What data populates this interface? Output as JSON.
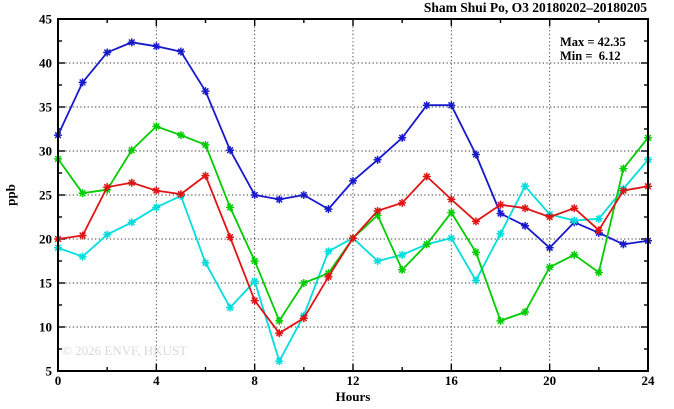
{
  "window": {
    "title": "Sham Shui Po, O3 20180202–20180205"
  },
  "stats": {
    "max_label": "Max = 42.35",
    "min_label": "Min =  6.12"
  },
  "watermark": "© 2026 ENVF, HKUST",
  "chart_data": {
    "type": "line",
    "title": "Sham Shui Po, O3 20180202–20180205",
    "xlabel": "Hours",
    "ylabel": "ppb",
    "xlim": [
      0,
      24
    ],
    "ylim": [
      5,
      45
    ],
    "x_major_ticks": [
      0,
      4,
      8,
      12,
      16,
      20,
      24
    ],
    "x_minor_ticks": [
      2,
      6,
      10,
      14,
      18,
      22
    ],
    "y_major_ticks": [
      5,
      10,
      15,
      20,
      25,
      30,
      35,
      40,
      45
    ],
    "y_minor_ticks": [
      7.5,
      12.5,
      17.5,
      22.5,
      27.5,
      32.5,
      37.5,
      42.5
    ],
    "grid": true,
    "grid_x": [
      4,
      8,
      12,
      16,
      20
    ],
    "grid_y": [
      10,
      15,
      20,
      25,
      30,
      35,
      40
    ],
    "legend_position": "none",
    "marker": "asterisk",
    "x": [
      0,
      1,
      2,
      3,
      4,
      5,
      6,
      7,
      8,
      9,
      10,
      11,
      12,
      13,
      14,
      15,
      16,
      17,
      18,
      19,
      20,
      21,
      22,
      23,
      24
    ],
    "series": [
      {
        "name": "blue-series",
        "color": "#1818cc",
        "values": [
          31.8,
          37.8,
          41.2,
          42.35,
          41.9,
          41.3,
          36.8,
          30.1,
          25.0,
          24.5,
          25.0,
          23.4,
          26.6,
          29.0,
          31.5,
          35.2,
          35.2,
          29.6,
          22.9,
          21.5,
          19.0,
          21.9,
          20.7,
          19.4,
          19.8
        ]
      },
      {
        "name": "cyan-series",
        "color": "#00dddd",
        "values": [
          19.0,
          18.0,
          20.5,
          21.9,
          23.6,
          24.9,
          17.3,
          12.2,
          15.2,
          6.12,
          11.3,
          18.6,
          20.1,
          17.5,
          18.2,
          19.4,
          20.1,
          15.3,
          20.6,
          26.0,
          22.8,
          22.1,
          22.3,
          25.7,
          29.0
        ]
      },
      {
        "name": "green-series",
        "color": "#00cc00",
        "values": [
          29.1,
          25.2,
          25.6,
          30.1,
          32.8,
          31.8,
          30.7,
          23.6,
          17.5,
          10.7,
          15.0,
          16.1,
          20.1,
          22.7,
          16.5,
          19.4,
          23.0,
          18.5,
          10.7,
          11.7,
          16.8,
          18.2,
          16.2,
          28.0,
          31.5
        ]
      },
      {
        "name": "red-series",
        "color": "#e01414",
        "values": [
          20.0,
          20.4,
          25.9,
          26.4,
          25.5,
          25.1,
          27.2,
          20.2,
          13.0,
          9.3,
          11.0,
          15.7,
          20.1,
          23.2,
          24.1,
          27.1,
          24.5,
          22.0,
          23.9,
          23.5,
          22.5,
          23.5,
          21.0,
          25.5,
          26.0
        ]
      }
    ],
    "annotations": {
      "max": 42.35,
      "min": 6.12
    }
  }
}
